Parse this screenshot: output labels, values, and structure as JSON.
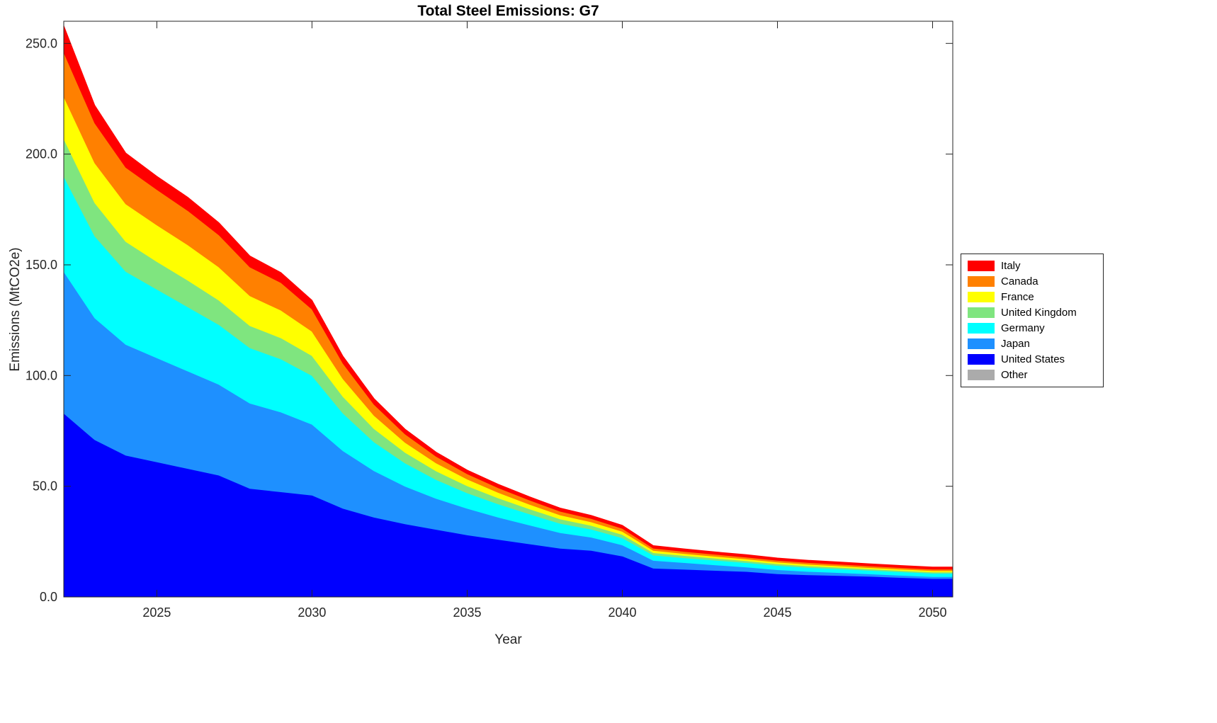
{
  "chart_data": {
    "type": "area",
    "stacked": true,
    "title": "Total Steel Emissions: G7",
    "xlabel": "Year",
    "ylabel": "Emissions (MtCO2e)",
    "xlim": [
      2022,
      2050.65
    ],
    "ylim": [
      0,
      260
    ],
    "grid": false,
    "legend_position": "right-outside",
    "x": [
      2022,
      2023,
      2024,
      2025,
      2026,
      2027,
      2028,
      2029,
      2030,
      2031,
      2032,
      2033,
      2034,
      2035,
      2036,
      2037,
      2038,
      2039,
      2040,
      2041,
      2042,
      2043,
      2044,
      2045,
      2046,
      2047,
      2048,
      2049,
      2050
    ],
    "x_ticks": [
      2025,
      2030,
      2035,
      2040,
      2045,
      2050
    ],
    "x_tick_labels": [
      "2025",
      "2030",
      "2035",
      "2040",
      "2045",
      "2050"
    ],
    "y_ticks": [
      0,
      50,
      100,
      150,
      200,
      250
    ],
    "y_tick_labels": [
      "0.0",
      "50.0",
      "100.0",
      "150.0",
      "200.0",
      "250.0"
    ],
    "series": [
      {
        "name": "Other",
        "color": "#ababab",
        "values": [
          0,
          0,
          0,
          0,
          0,
          0,
          0,
          0,
          0,
          0,
          0,
          0,
          0,
          0,
          0,
          0,
          0,
          0,
          0,
          0,
          0,
          0,
          0,
          0,
          0,
          0,
          0,
          0,
          0
        ]
      },
      {
        "name": "United States",
        "color": "#0000ff",
        "values": [
          83,
          71,
          64,
          61,
          58,
          55,
          49,
          47.5,
          46,
          40,
          36,
          33,
          30.5,
          28,
          26,
          24,
          22,
          21,
          18.5,
          13,
          12.5,
          12,
          11.5,
          10.5,
          10,
          9.7,
          9.3,
          8.8,
          8.3
        ]
      },
      {
        "name": "Japan",
        "color": "#1e90ff",
        "values": [
          64,
          55,
          50,
          47,
          44,
          41,
          38.5,
          36,
          32,
          26,
          21,
          17,
          14,
          12,
          10,
          8.5,
          7,
          6,
          5,
          3.5,
          3,
          2.5,
          2,
          1.8,
          1.5,
          1.3,
          1.1,
          1,
          0.9
        ]
      },
      {
        "name": "Germany",
        "color": "#00ffff",
        "values": [
          43,
          37,
          33,
          31,
          29,
          27,
          25,
          24,
          22,
          17,
          13,
          10.5,
          8.5,
          7,
          6,
          5,
          4.2,
          3.6,
          3.2,
          2.4,
          2.2,
          2.1,
          2,
          1.9,
          1.8,
          1.7,
          1.6,
          1.55,
          1.5
        ]
      },
      {
        "name": "United Kingdom",
        "color": "#7fe57f",
        "values": [
          17,
          15,
          13.5,
          12.5,
          12,
          11,
          10,
          9.5,
          9,
          7.5,
          6,
          4.8,
          3.9,
          3.2,
          2.7,
          2.3,
          2,
          1.7,
          1.5,
          1.1,
          1,
          0.9,
          0.85,
          0.8,
          0.75,
          0.7,
          0.65,
          0.6,
          0.6
        ]
      },
      {
        "name": "France",
        "color": "#ffff00",
        "values": [
          19,
          18,
          17,
          16.5,
          16,
          15,
          13.5,
          12.5,
          11,
          8,
          6,
          4.5,
          3.6,
          3,
          2.5,
          2.1,
          1.8,
          1.6,
          1.4,
          1,
          0.9,
          0.85,
          0.8,
          0.75,
          0.7,
          0.65,
          0.6,
          0.58,
          0.55
        ]
      },
      {
        "name": "Canada",
        "color": "#ff8000",
        "values": [
          20,
          18,
          16.5,
          16,
          15.5,
          14.5,
          13,
          12.5,
          10,
          7,
          5,
          3.8,
          3,
          2.4,
          2.1,
          1.9,
          1.7,
          1.5,
          1.4,
          1,
          0.95,
          0.9,
          0.85,
          0.8,
          0.78,
          0.75,
          0.72,
          0.7,
          0.7
        ]
      },
      {
        "name": "Italy",
        "color": "#ff0000",
        "values": [
          12,
          8,
          6.5,
          6,
          6,
          5.5,
          5,
          4.5,
          4,
          3.2,
          2.6,
          2.2,
          1.9,
          1.7,
          1.6,
          1.5,
          1.45,
          1.4,
          1.35,
          1.2,
          1.15,
          1.1,
          1.08,
          1.05,
          1.02,
          1,
          0.98,
          0.96,
          0.95
        ]
      }
    ]
  }
}
